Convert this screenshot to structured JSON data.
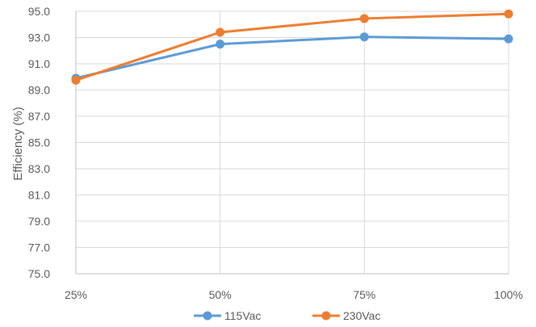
{
  "chart_data": {
    "type": "line",
    "title": "",
    "xlabel": "",
    "ylabel": "Efficiency (%)",
    "categories": [
      "25%",
      "50%",
      "75%",
      "100%"
    ],
    "ylim": [
      75.0,
      95.0
    ],
    "yticks": [
      "75.0",
      "77.0",
      "79.0",
      "81.0",
      "83.0",
      "85.0",
      "87.0",
      "89.0",
      "91.0",
      "93.0",
      "95.0"
    ],
    "grid": true,
    "legend_position": "bottom",
    "series": [
      {
        "name": "115Vac",
        "color": "#5B9BD5",
        "values": [
          89.9,
          92.5,
          93.05,
          92.9
        ]
      },
      {
        "name": "230Vac",
        "color": "#ED7D31",
        "values": [
          89.75,
          93.4,
          94.45,
          94.8
        ]
      }
    ]
  }
}
